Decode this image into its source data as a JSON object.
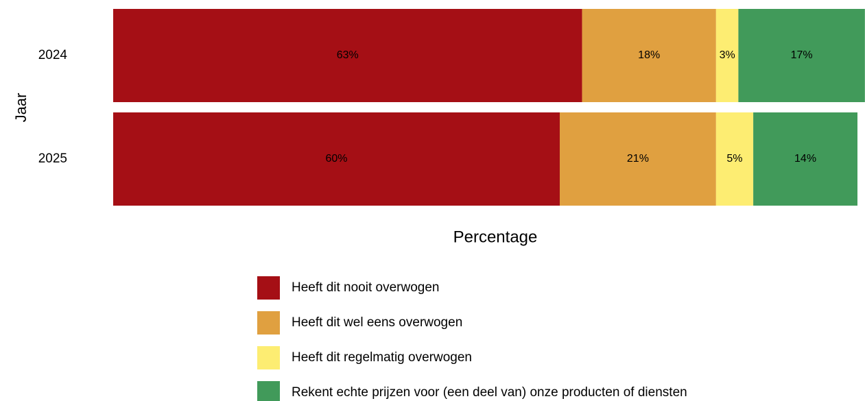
{
  "chart_data": {
    "type": "stacked-bar-horizontal",
    "ylabel": "Jaar",
    "xlabel": "Percentage",
    "categories": [
      "2024",
      "2025"
    ],
    "xlim": [
      0,
      100
    ],
    "series": [
      {
        "name": "Heeft dit nooit overwogen",
        "color": "#a50f15",
        "values": [
          63,
          60
        ],
        "value_labels": [
          "63%",
          "60%"
        ]
      },
      {
        "name": "Heeft dit wel eens overwogen",
        "color": "#e0a040",
        "values": [
          18,
          21
        ],
        "value_labels": [
          "18%",
          "21%"
        ]
      },
      {
        "name": "Heeft dit regelmatig overwogen",
        "color": "#fded72",
        "values": [
          3,
          5
        ],
        "value_labels": [
          "3%",
          "5%"
        ]
      },
      {
        "name": "Rekent echte prijzen voor (een deel van) onze producten of diensten",
        "color": "#419a5a",
        "values": [
          17,
          14
        ],
        "value_labels": [
          "17%",
          "14%"
        ]
      }
    ]
  }
}
